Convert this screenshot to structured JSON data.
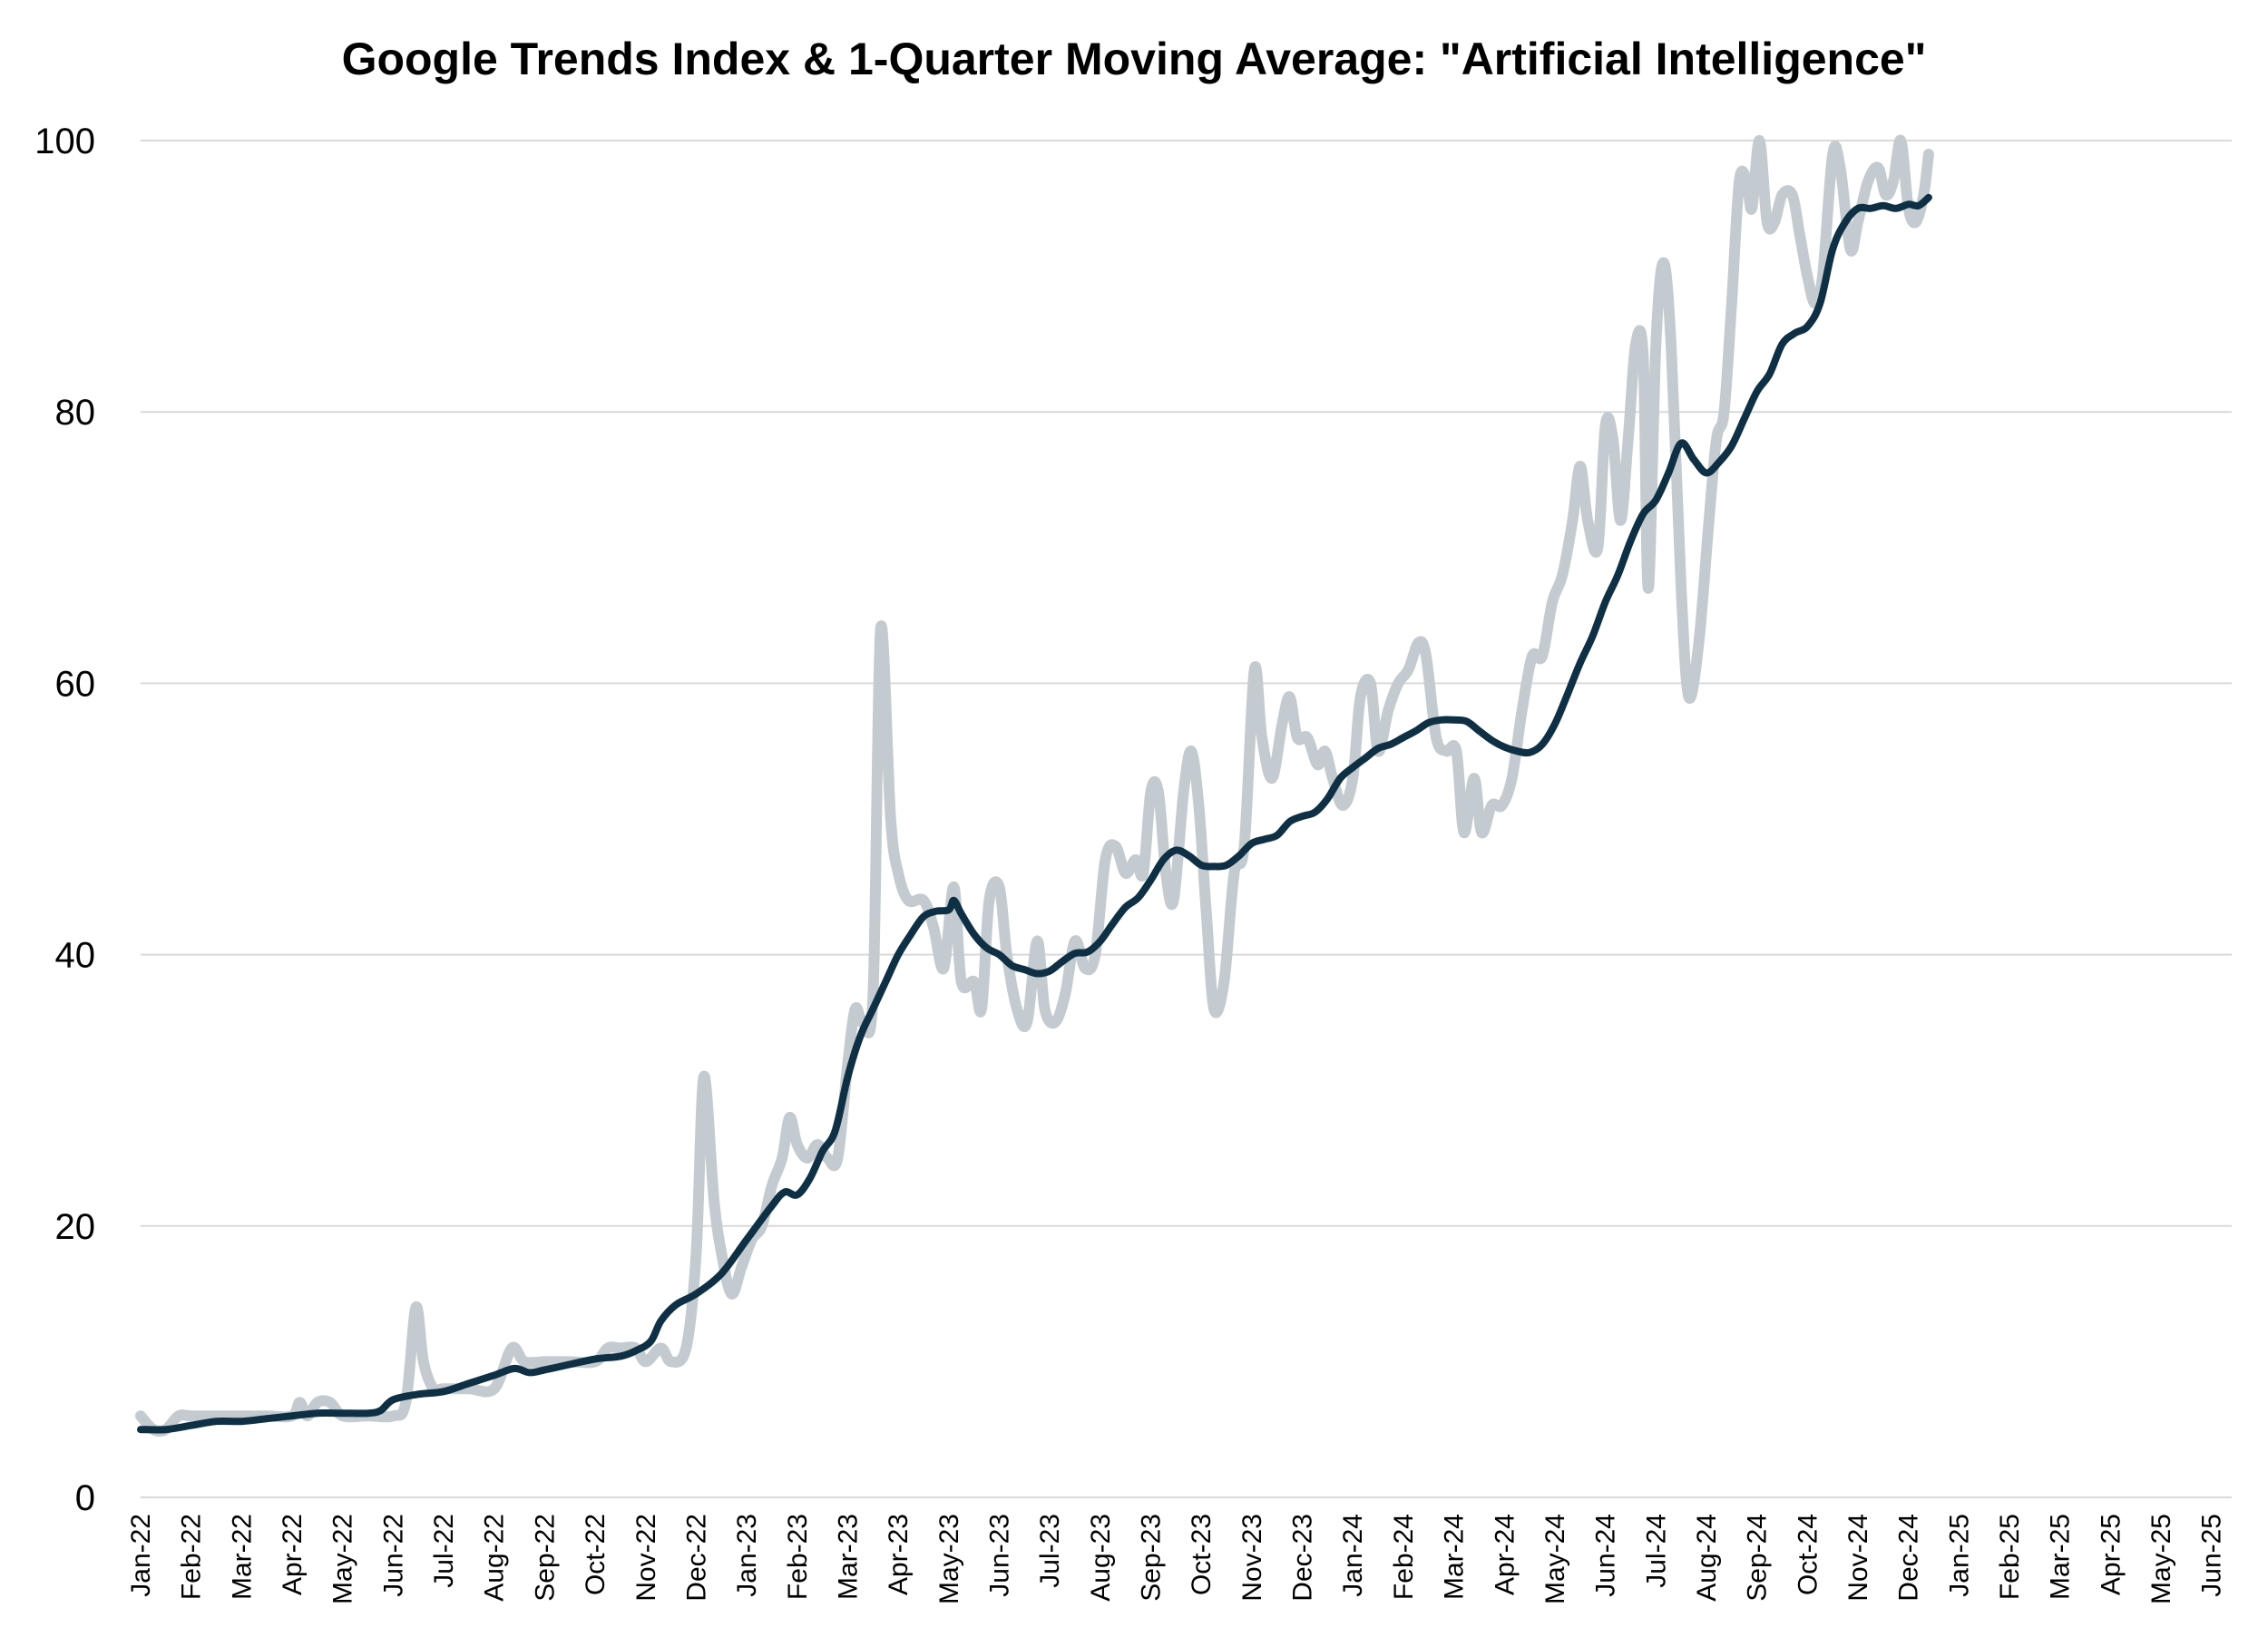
{
  "chart_data": {
    "type": "line",
    "title": "Google Trends Index & 1-Quarter Moving Average: \"Artificial Intelligence\"",
    "xlabel": "",
    "ylabel": "",
    "ylim": [
      0,
      100
    ],
    "yticks": [
      0,
      20,
      40,
      60,
      80,
      100
    ],
    "grid": true,
    "legend": "none",
    "x_tick_labels": [
      "Jan-22",
      "Feb-22",
      "Mar-22",
      "Apr-22",
      "May-22",
      "Jun-22",
      "Jul-22",
      "Aug-22",
      "Sep-22",
      "Oct-22",
      "Nov-22",
      "Dec-22",
      "Jan-23",
      "Feb-23",
      "Mar-23",
      "Apr-23",
      "May-23",
      "Jun-23",
      "Jul-23",
      "Aug-23",
      "Sep-23",
      "Oct-23",
      "Nov-23",
      "Dec-23",
      "Jan-24",
      "Feb-24",
      "Mar-24",
      "Apr-24",
      "May-24",
      "Jun-24",
      "Jul-24",
      "Aug-24",
      "Sep-24",
      "Oct-24",
      "Nov-24",
      "Dec-24",
      "Jan-25",
      "Feb-25",
      "Mar-25",
      "Apr-25",
      "May-25",
      "Jun-25"
    ],
    "colors": {
      "index": "#c3cbd0",
      "moving_average": "#0e2f44"
    },
    "series": [
      {
        "points": [
          [
            0.0,
            6
          ],
          [
            0.25,
            5
          ],
          [
            0.5,
            5
          ],
          [
            0.75,
            6
          ],
          [
            1.0,
            6
          ],
          [
            1.5,
            6
          ],
          [
            2.0,
            6
          ],
          [
            2.5,
            6
          ],
          [
            3.0,
            6
          ],
          [
            3.15,
            7
          ],
          [
            3.3,
            6
          ],
          [
            3.5,
            7
          ],
          [
            3.75,
            7
          ],
          [
            4.0,
            6
          ],
          [
            4.5,
            6
          ],
          [
            5.0,
            6
          ],
          [
            5.25,
            7
          ],
          [
            5.45,
            14
          ],
          [
            5.6,
            10
          ],
          [
            5.8,
            8
          ],
          [
            6.0,
            8
          ],
          [
            6.5,
            8
          ],
          [
            7.0,
            8
          ],
          [
            7.35,
            11
          ],
          [
            7.6,
            10
          ],
          [
            8.0,
            10
          ],
          [
            8.5,
            10
          ],
          [
            9.0,
            10
          ],
          [
            9.25,
            11
          ],
          [
            9.5,
            11
          ],
          [
            9.8,
            11
          ],
          [
            10.0,
            10
          ],
          [
            10.3,
            11
          ],
          [
            10.5,
            10
          ],
          [
            10.8,
            11
          ],
          [
            11.0,
            18
          ],
          [
            11.15,
            31
          ],
          [
            11.35,
            22
          ],
          [
            11.5,
            18
          ],
          [
            11.7,
            15
          ],
          [
            11.9,
            17
          ],
          [
            12.1,
            19
          ],
          [
            12.3,
            20
          ],
          [
            12.5,
            23
          ],
          [
            12.7,
            25
          ],
          [
            12.85,
            28
          ],
          [
            13.0,
            26
          ],
          [
            13.2,
            25
          ],
          [
            13.4,
            26
          ],
          [
            13.6,
            25
          ],
          [
            13.8,
            25
          ],
          [
            14.0,
            32
          ],
          [
            14.15,
            36
          ],
          [
            14.3,
            35
          ],
          [
            14.5,
            37
          ],
          [
            14.65,
            64
          ],
          [
            14.85,
            50
          ],
          [
            15.0,
            46
          ],
          [
            15.2,
            44
          ],
          [
            15.5,
            44
          ],
          [
            15.7,
            42
          ],
          [
            15.9,
            39
          ],
          [
            16.1,
            45
          ],
          [
            16.25,
            38
          ],
          [
            16.5,
            38
          ],
          [
            16.65,
            36
          ],
          [
            16.8,
            44
          ],
          [
            17.0,
            45
          ],
          [
            17.15,
            40
          ],
          [
            17.35,
            36
          ],
          [
            17.55,
            35
          ],
          [
            17.75,
            41
          ],
          [
            17.9,
            36
          ],
          [
            18.1,
            35
          ],
          [
            18.3,
            37
          ],
          [
            18.5,
            41
          ],
          [
            18.7,
            39
          ],
          [
            18.9,
            40
          ],
          [
            19.1,
            47
          ],
          [
            19.3,
            48
          ],
          [
            19.5,
            46
          ],
          [
            19.7,
            47
          ],
          [
            19.85,
            46
          ],
          [
            20.0,
            52
          ],
          [
            20.15,
            52
          ],
          [
            20.3,
            46
          ],
          [
            20.45,
            44
          ],
          [
            20.65,
            52
          ],
          [
            20.8,
            55
          ],
          [
            20.95,
            51
          ],
          [
            21.1,
            43
          ],
          [
            21.25,
            36
          ],
          [
            21.45,
            38
          ],
          [
            21.65,
            46
          ],
          [
            21.85,
            48
          ],
          [
            22.05,
            61
          ],
          [
            22.2,
            56
          ],
          [
            22.4,
            53
          ],
          [
            22.6,
            57
          ],
          [
            22.75,
            59
          ],
          [
            22.9,
            56
          ],
          [
            23.1,
            56
          ],
          [
            23.3,
            54
          ],
          [
            23.45,
            55
          ],
          [
            23.6,
            53
          ],
          [
            23.8,
            51
          ],
          [
            24.0,
            53
          ],
          [
            24.15,
            59
          ],
          [
            24.35,
            60
          ],
          [
            24.5,
            55
          ],
          [
            24.7,
            58
          ],
          [
            24.9,
            60
          ],
          [
            25.1,
            61
          ],
          [
            25.3,
            63
          ],
          [
            25.45,
            62
          ],
          [
            25.65,
            56
          ],
          [
            25.85,
            55
          ],
          [
            26.05,
            55
          ],
          [
            26.2,
            49
          ],
          [
            26.4,
            53
          ],
          [
            26.55,
            49
          ],
          [
            26.75,
            51
          ],
          [
            26.95,
            51
          ],
          [
            27.15,
            53
          ],
          [
            27.35,
            58
          ],
          [
            27.55,
            62
          ],
          [
            27.75,
            62
          ],
          [
            27.95,
            66
          ],
          [
            28.15,
            68
          ],
          [
            28.35,
            72
          ],
          [
            28.5,
            76
          ],
          [
            28.65,
            72
          ],
          [
            28.85,
            70
          ],
          [
            29.0,
            79
          ],
          [
            29.15,
            78
          ],
          [
            29.3,
            72
          ],
          [
            29.45,
            78
          ],
          [
            29.6,
            85
          ],
          [
            29.75,
            84
          ],
          [
            29.85,
            67
          ],
          [
            30.0,
            85
          ],
          [
            30.15,
            91
          ],
          [
            30.3,
            85
          ],
          [
            30.5,
            67
          ],
          [
            30.65,
            59
          ],
          [
            30.85,
            63
          ],
          [
            31.05,
            72
          ],
          [
            31.2,
            78
          ],
          [
            31.35,
            80
          ],
          [
            31.5,
            88
          ],
          [
            31.65,
            97
          ],
          [
            31.8,
            97
          ],
          [
            31.9,
            95
          ],
          [
            32.05,
            100
          ],
          [
            32.2,
            94
          ],
          [
            32.35,
            94
          ],
          [
            32.5,
            96
          ],
          [
            32.7,
            96
          ],
          [
            32.85,
            93
          ],
          [
            33.0,
            90
          ],
          [
            33.15,
            88
          ],
          [
            33.3,
            90
          ],
          [
            33.5,
            99
          ],
          [
            33.65,
            98
          ],
          [
            33.85,
            92
          ],
          [
            34.0,
            94
          ],
          [
            34.2,
            97
          ],
          [
            34.4,
            98
          ],
          [
            34.55,
            96
          ],
          [
            34.7,
            97
          ],
          [
            34.85,
            100
          ],
          [
            35.0,
            95
          ],
          [
            35.15,
            94
          ],
          [
            35.3,
            96
          ],
          [
            35.4,
            99
          ]
        ]
      },
      {
        "points": [
          [
            0.0,
            5
          ],
          [
            0.5,
            5
          ],
          [
            1.0,
            5.3
          ],
          [
            1.5,
            5.6
          ],
          [
            2.0,
            5.6
          ],
          [
            2.5,
            5.8
          ],
          [
            3.0,
            6.0
          ],
          [
            3.5,
            6.2
          ],
          [
            4.0,
            6.2
          ],
          [
            4.5,
            6.2
          ],
          [
            4.75,
            6.4
          ],
          [
            5.0,
            7.2
          ],
          [
            5.5,
            7.6
          ],
          [
            6.0,
            7.8
          ],
          [
            6.5,
            8.4
          ],
          [
            7.0,
            9.0
          ],
          [
            7.4,
            9.5
          ],
          [
            7.7,
            9.2
          ],
          [
            8.0,
            9.4
          ],
          [
            8.5,
            9.8
          ],
          [
            9.0,
            10.2
          ],
          [
            9.5,
            10.4
          ],
          [
            9.8,
            10.8
          ],
          [
            10.1,
            11.5
          ],
          [
            10.3,
            13
          ],
          [
            10.6,
            14.2
          ],
          [
            11.0,
            15
          ],
          [
            11.5,
            16.5
          ],
          [
            12.0,
            19
          ],
          [
            12.5,
            21.5
          ],
          [
            12.75,
            22.5
          ],
          [
            13.0,
            22.3
          ],
          [
            13.25,
            23.5
          ],
          [
            13.5,
            25.5
          ],
          [
            13.75,
            27
          ],
          [
            14.0,
            31
          ],
          [
            14.25,
            34
          ],
          [
            14.5,
            36
          ],
          [
            14.75,
            38
          ],
          [
            15.0,
            40
          ],
          [
            15.25,
            41.5
          ],
          [
            15.5,
            42.8
          ],
          [
            15.75,
            43.2
          ],
          [
            16.0,
            43.3
          ],
          [
            16.1,
            44
          ],
          [
            16.25,
            43
          ],
          [
            16.5,
            41.5
          ],
          [
            16.75,
            40.5
          ],
          [
            17.0,
            40
          ],
          [
            17.25,
            39.2
          ],
          [
            17.5,
            38.9
          ],
          [
            17.75,
            38.6
          ],
          [
            18.0,
            38.8
          ],
          [
            18.25,
            39.5
          ],
          [
            18.5,
            40.1
          ],
          [
            18.75,
            40.2
          ],
          [
            19.0,
            41
          ],
          [
            19.25,
            42.3
          ],
          [
            19.5,
            43.5
          ],
          [
            19.75,
            44.2
          ],
          [
            20.0,
            45.5
          ],
          [
            20.25,
            47
          ],
          [
            20.5,
            47.7
          ],
          [
            20.75,
            47.3
          ],
          [
            21.0,
            46.6
          ],
          [
            21.25,
            46.5
          ],
          [
            21.5,
            46.6
          ],
          [
            21.75,
            47.3
          ],
          [
            22.0,
            48.2
          ],
          [
            22.25,
            48.5
          ],
          [
            22.5,
            48.8
          ],
          [
            22.75,
            49.8
          ],
          [
            23.0,
            50.2
          ],
          [
            23.25,
            50.5
          ],
          [
            23.5,
            51.5
          ],
          [
            23.75,
            53
          ],
          [
            24.0,
            53.8
          ],
          [
            24.25,
            54.5
          ],
          [
            24.5,
            55.2
          ],
          [
            24.75,
            55.5
          ],
          [
            25.0,
            56
          ],
          [
            25.25,
            56.5
          ],
          [
            25.5,
            57.1
          ],
          [
            25.75,
            57.3
          ],
          [
            26.0,
            57.3
          ],
          [
            26.25,
            57.2
          ],
          [
            26.5,
            56.5
          ],
          [
            26.75,
            55.8
          ],
          [
            27.0,
            55.3
          ],
          [
            27.25,
            55
          ],
          [
            27.5,
            54.9
          ],
          [
            27.75,
            55.5
          ],
          [
            28.0,
            57
          ],
          [
            28.25,
            59.2
          ],
          [
            28.5,
            61.5
          ],
          [
            28.75,
            63.5
          ],
          [
            29.0,
            66
          ],
          [
            29.25,
            68
          ],
          [
            29.5,
            70.5
          ],
          [
            29.75,
            72.5
          ],
          [
            30.0,
            73.5
          ],
          [
            30.25,
            75.5
          ],
          [
            30.5,
            77.7
          ],
          [
            30.75,
            76.5
          ],
          [
            31.0,
            75.5
          ],
          [
            31.25,
            76.3
          ],
          [
            31.5,
            77.5
          ],
          [
            31.75,
            79.5
          ],
          [
            32.0,
            81.5
          ],
          [
            32.25,
            82.8
          ],
          [
            32.5,
            85
          ],
          [
            32.75,
            85.8
          ],
          [
            33.0,
            86.3
          ],
          [
            33.25,
            88
          ],
          [
            33.5,
            92
          ],
          [
            33.75,
            94
          ],
          [
            34.0,
            95
          ],
          [
            34.25,
            95
          ],
          [
            34.5,
            95.2
          ],
          [
            34.75,
            95
          ],
          [
            35.0,
            95.3
          ],
          [
            35.2,
            95.2
          ],
          [
            35.4,
            95.8
          ]
        ]
      }
    ]
  }
}
